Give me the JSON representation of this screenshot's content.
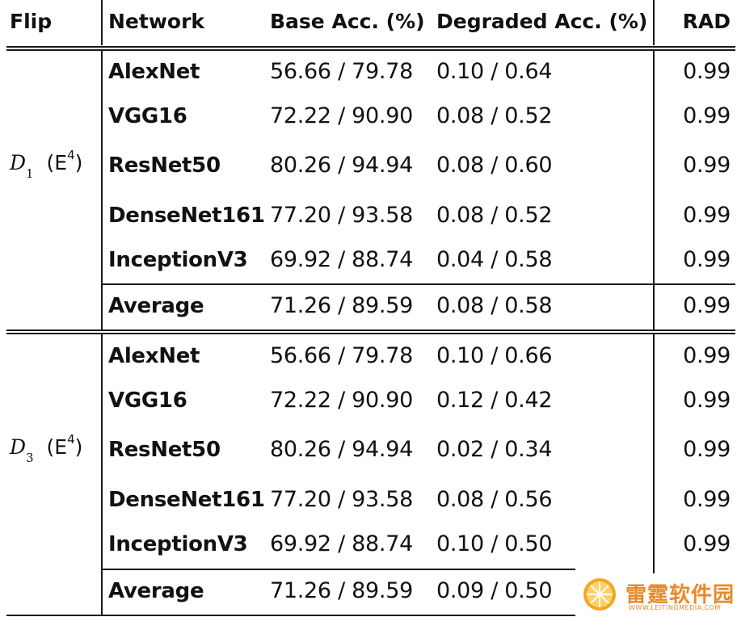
{
  "headers": {
    "flip": "Flip",
    "network": "Network",
    "base": "Base Acc. (%)",
    "degraded": "Degraded Acc. (%)",
    "rad": "RAD"
  },
  "groups": [
    {
      "flip_symbol": "D",
      "flip_sub": "1",
      "flip_paren_open": "(E",
      "flip_sup": "4",
      "flip_paren_close": ")",
      "rows": [
        {
          "network": "AlexNet",
          "base": "56.66 / 79.78",
          "degraded": "0.10 / 0.64",
          "rad": "0.99"
        },
        {
          "network": "VGG16",
          "base": "72.22 / 90.90",
          "degraded": "0.08 / 0.52",
          "rad": "0.99"
        },
        {
          "network": "ResNet50",
          "base": "80.26 / 94.94",
          "degraded": "0.08 / 0.60",
          "rad": "0.99"
        },
        {
          "network": "DenseNet161",
          "base": "77.20 / 93.58",
          "degraded": "0.08 / 0.52",
          "rad": "0.99"
        },
        {
          "network": "InceptionV3",
          "base": "69.92 / 88.74",
          "degraded": "0.04 / 0.58",
          "rad": "0.99"
        }
      ],
      "average": {
        "network": "Average",
        "base": "71.26 / 89.59",
        "degraded": "0.08 / 0.58",
        "rad": "0.99"
      }
    },
    {
      "flip_symbol": "D",
      "flip_sub": "3",
      "flip_paren_open": "(E",
      "flip_sup": "4",
      "flip_paren_close": ")",
      "rows": [
        {
          "network": "AlexNet",
          "base": "56.66 / 79.78",
          "degraded": "0.10 / 0.66",
          "rad": "0.99"
        },
        {
          "network": "VGG16",
          "base": "72.22 / 90.90",
          "degraded": "0.12 / 0.42",
          "rad": "0.99"
        },
        {
          "network": "ResNet50",
          "base": "80.26 / 94.94",
          "degraded": "0.02 / 0.34",
          "rad": "0.99"
        },
        {
          "network": "DenseNet161",
          "base": "77.20 / 93.58",
          "degraded": "0.08 / 0.56",
          "rad": "0.99"
        },
        {
          "network": "InceptionV3",
          "base": "69.92 / 88.74",
          "degraded": "0.10 / 0.50",
          "rad": "0.99"
        }
      ],
      "average": {
        "network": "Average",
        "base": "71.26 / 89.59",
        "degraded": "0.09 / 0.50",
        "rad": ""
      }
    }
  ],
  "watermark": {
    "text": "雷霆软件园",
    "url": "WWW.LEITINGMEDIA.COM"
  }
}
